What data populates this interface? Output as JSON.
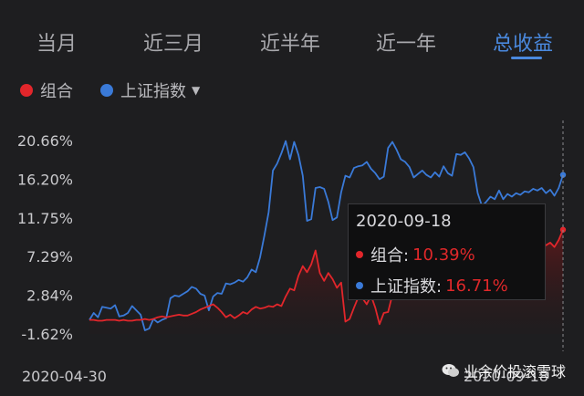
{
  "tabs": [
    {
      "label": "当月"
    },
    {
      "label": "近三月"
    },
    {
      "label": "近半年"
    },
    {
      "label": "近一年"
    },
    {
      "label": "总收益"
    }
  ],
  "active_tab": 4,
  "legend": {
    "items": [
      {
        "label": "组合",
        "color": "#e2262b"
      },
      {
        "label": "上证指数",
        "color": "#3a7ad8"
      }
    ],
    "dropdown_icon": "caret-down-icon"
  },
  "colors": {
    "portfolio": "#e2262b",
    "index": "#3a7ad8",
    "active_tab": "#4a89de",
    "background": "#1e1e20"
  },
  "chart_data": {
    "type": "line",
    "title": "",
    "x_start": "2020-04-30",
    "x_end": "2020-09-18",
    "y_ticks": [
      "20.66%",
      "16.20%",
      "11.75%",
      "7.29%",
      "2.84%",
      "-1.62%"
    ],
    "ylim": [
      -1.62,
      20.66
    ],
    "series": [
      {
        "name": "组合",
        "values": [
          0.0,
          0.0,
          -0.1,
          -0.1,
          0.0,
          0.0,
          0.0,
          -0.1,
          0.0,
          -0.1,
          -0.1,
          0.0,
          0.0,
          0.1,
          0.0,
          0.1,
          0.3,
          0.4,
          0.3,
          0.4,
          0.5,
          0.6,
          0.5,
          0.5,
          0.7,
          0.9,
          1.2,
          1.4,
          1.6,
          1.8,
          1.4,
          0.9,
          0.3,
          0.6,
          0.2,
          0.5,
          0.9,
          0.7,
          1.2,
          1.5,
          1.3,
          1.4,
          1.6,
          1.5,
          1.8,
          1.6,
          2.7,
          3.6,
          3.4,
          5.1,
          6.2,
          5.5,
          6.4,
          8.0,
          5.4,
          4.5,
          5.4,
          4.7,
          3.7,
          4.3,
          -0.2,
          0.1,
          1.4,
          2.6,
          2.5,
          1.8,
          2.8,
          1.4,
          -0.5,
          0.8,
          0.9,
          2.9,
          3.7,
          3.8,
          4.2,
          4.5,
          4.8,
          4.6,
          4.9,
          4.7,
          5.0,
          4.9,
          5.1,
          4.9,
          5.3,
          5.6,
          5.4,
          5.9,
          6.1,
          5.8,
          6.6,
          6.9,
          6.4,
          6.1,
          7.1,
          7.6,
          7.4,
          7.9,
          6.7,
          7.2,
          7.8,
          8.4,
          8.2,
          8.6,
          8.9,
          8.3,
          8.8,
          8.6,
          8.9,
          8.4,
          9.2,
          10.39
        ]
      },
      {
        "name": "上证指数",
        "values": [
          0.0,
          0.8,
          0.3,
          1.5,
          1.4,
          1.3,
          1.7,
          0.4,
          0.5,
          0.8,
          1.6,
          1.1,
          0.6,
          -1.2,
          -1.0,
          0.1,
          -0.3,
          0.0,
          0.2,
          2.5,
          2.8,
          2.7,
          3.0,
          3.3,
          3.8,
          3.6,
          3.0,
          2.8,
          1.1,
          2.7,
          3.1,
          3.0,
          4.2,
          4.1,
          4.3,
          4.6,
          4.4,
          4.9,
          5.8,
          5.5,
          7.2,
          9.7,
          12.4,
          17.2,
          18.0,
          19.2,
          20.6,
          18.5,
          20.5,
          19.0,
          16.6,
          11.4,
          11.6,
          15.2,
          15.3,
          15.1,
          13.6,
          11.5,
          11.8,
          14.7,
          16.6,
          16.4,
          17.5,
          17.7,
          17.8,
          18.2,
          17.4,
          16.9,
          16.2,
          16.5,
          19.8,
          20.5,
          19.6,
          18.5,
          18.2,
          17.6,
          16.4,
          16.8,
          17.2,
          16.7,
          16.4,
          17.0,
          16.5,
          17.7,
          16.9,
          16.6,
          19.1,
          19.0,
          19.3,
          18.6,
          17.6,
          14.6,
          13.1,
          13.6,
          14.2,
          13.9,
          14.9,
          13.9,
          14.5,
          14.2,
          14.6,
          14.4,
          14.8,
          14.7,
          15.1,
          14.9,
          15.2,
          14.6,
          15.0,
          14.3,
          15.2,
          16.71
        ]
      }
    ],
    "x_labels": {
      "start": "2020-04-30",
      "end": "2020-09-18"
    },
    "legend_position": "top-left",
    "grid": false
  },
  "tooltip": {
    "date": "2020-09-18",
    "rows": [
      {
        "name": "组合:",
        "value": "10.39%",
        "color": "#e2262b"
      },
      {
        "name": "上证指数:",
        "value": "16.71%",
        "color": "#3a7ad8"
      }
    ]
  },
  "watermark": {
    "text": "业余价投滚雪球",
    "icon": "wechat-icon"
  }
}
